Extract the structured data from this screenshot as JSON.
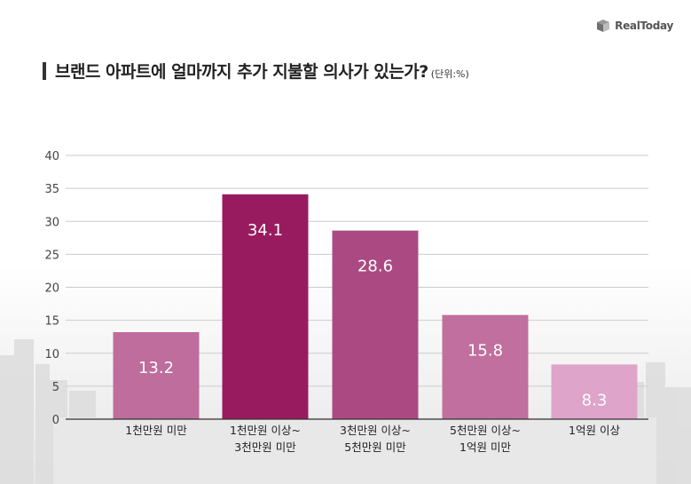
{
  "brand": {
    "name": "RealToday",
    "logo_icon": "cube-logo-icon"
  },
  "title": {
    "main": "브랜드 아파트에 얼마까지 추가 지불할 의사가 있는가?",
    "unit": "(단위:%)"
  },
  "colors": {
    "bar1": "#be6d9c",
    "bar2": "#991b5f",
    "bar3": "#ab4a82",
    "bar4": "#c06f9e",
    "bar5": "#dfa4ca",
    "grid": "#cccccc",
    "axis": "#333333"
  },
  "chart_data": {
    "type": "bar",
    "categories": [
      [
        "1천만원 미만"
      ],
      [
        "1천만원 이상~",
        "3천만원 미만"
      ],
      [
        "3천만원 이상~",
        "5천만원 미만"
      ],
      [
        "5천만원 이상~",
        "1억원 미만"
      ],
      [
        "1억원 이상"
      ]
    ],
    "values": [
      13.2,
      34.1,
      28.6,
      15.8,
      8.3
    ],
    "value_labels": [
      "13.2",
      "34.1",
      "28.6",
      "15.8",
      "8.3"
    ],
    "yticks": [
      "0",
      "5",
      "10",
      "15",
      "20",
      "25",
      "30",
      "35",
      "40"
    ],
    "ylim": [
      0,
      40
    ],
    "grid": true
  }
}
